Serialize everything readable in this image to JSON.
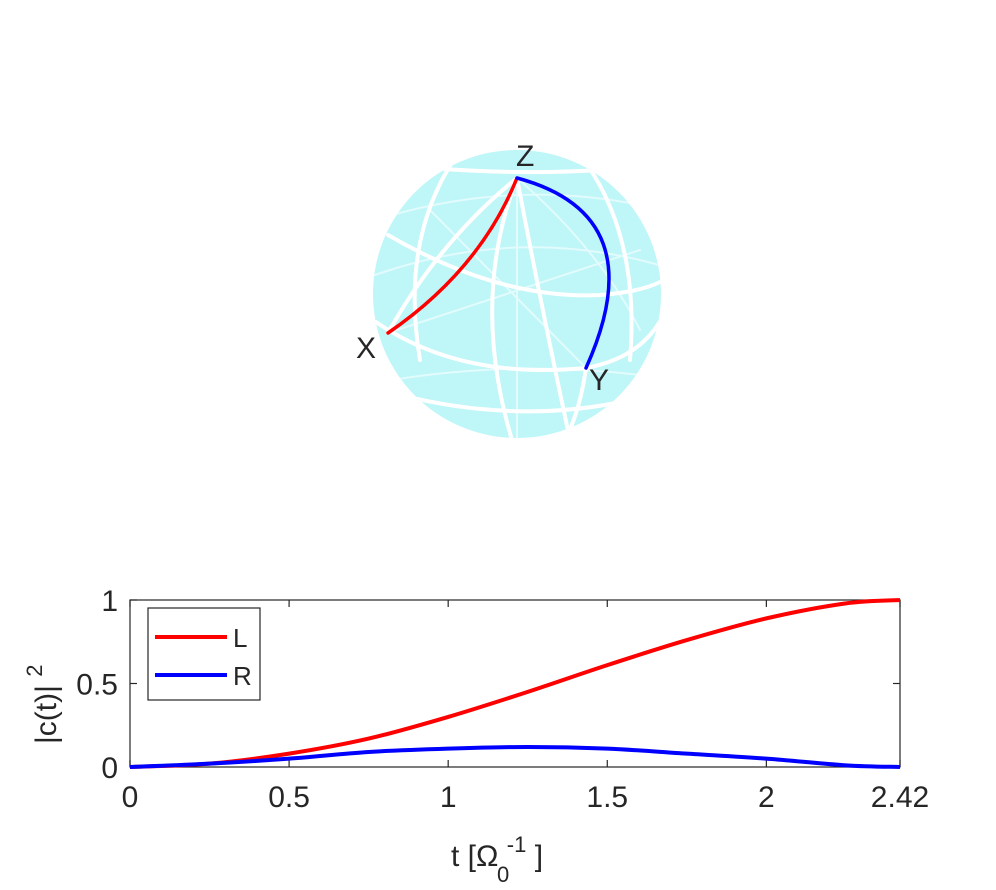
{
  "sphere": {
    "fill_color": "#bff6f8",
    "grid_color": "#ffffff",
    "labels": {
      "z": "Z",
      "x": "X",
      "y": "Y"
    },
    "paths": [
      {
        "name": "red-path",
        "color": "#ff0000",
        "from": "X",
        "to": "Z"
      },
      {
        "name": "blue-path",
        "color": "#0000ff",
        "from": "Y",
        "to": "Z"
      }
    ]
  },
  "chart_data": {
    "type": "line",
    "xlabel": "t [Ω0-1]",
    "ylabel": "|c(t)|2",
    "xlim": [
      0,
      2.42
    ],
    "ylim": [
      0,
      1
    ],
    "x_ticks": [
      "0",
      "0.5",
      "1",
      "1.5",
      "2",
      "2.42"
    ],
    "x_tick_values": [
      0,
      0.5,
      1,
      1.5,
      2,
      2.42
    ],
    "y_ticks": [
      "0",
      "0.5",
      "1"
    ],
    "y_tick_values": [
      0,
      0.5,
      1
    ],
    "legend_position": "top-left",
    "series": [
      {
        "name": "L",
        "color": "#ff0000",
        "x": [
          0,
          0.25,
          0.5,
          0.75,
          1.0,
          1.25,
          1.5,
          1.75,
          2.0,
          2.25,
          2.42
        ],
        "values": [
          0.0,
          0.02,
          0.08,
          0.17,
          0.3,
          0.45,
          0.61,
          0.76,
          0.89,
          0.98,
          1.0
        ]
      },
      {
        "name": "R",
        "color": "#0000ff",
        "x": [
          0,
          0.25,
          0.5,
          0.75,
          1.0,
          1.25,
          1.5,
          1.75,
          2.0,
          2.25,
          2.42
        ],
        "values": [
          0.0,
          0.02,
          0.05,
          0.09,
          0.11,
          0.12,
          0.11,
          0.08,
          0.05,
          0.01,
          0.0
        ]
      }
    ]
  }
}
